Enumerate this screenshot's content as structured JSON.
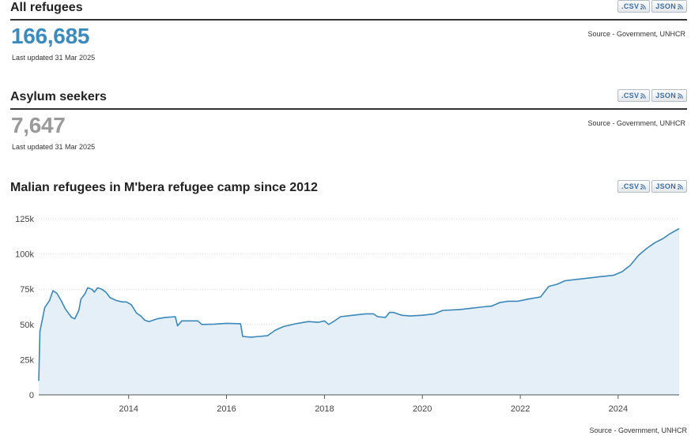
{
  "export": {
    "csv_label": ".CSV",
    "json_label": "JSON",
    "feed_icon": "rss-icon"
  },
  "refugees": {
    "title": "All refugees",
    "value": "166,685",
    "updated": "Last updated 31 Mar 2025",
    "source": "Source - Government, UNHCR",
    "value_color": "#3b8bbd"
  },
  "asylum": {
    "title": "Asylum seekers",
    "value": "7,647",
    "updated": "Last updated 31 Mar 2025",
    "source": "Source - Government, UNHCR",
    "value_color": "#9a9a9a"
  },
  "chart_section": {
    "title": "Malian refugees in M'bera refugee camp since 2012",
    "source": "Source - Government, UNHCR"
  },
  "chart_data": {
    "type": "area",
    "title": "Malian refugees in M'bera refugee camp since 2012",
    "xlabel": "",
    "ylabel": "",
    "xlim": [
      "2012-03-01",
      "2025-03-31"
    ],
    "ylim": [
      0,
      125000
    ],
    "y_ticks": [
      0,
      25000,
      50000,
      75000,
      100000,
      125000
    ],
    "y_tick_labels": [
      "0",
      "25k",
      "50k",
      "75k",
      "100k",
      "125k"
    ],
    "x_ticks": [
      "2014-01-01",
      "2016-01-01",
      "2018-01-01",
      "2020-01-01",
      "2022-01-01",
      "2024-01-01"
    ],
    "x_tick_labels": [
      "2014",
      "2016",
      "2018",
      "2020",
      "2022",
      "2024"
    ],
    "grid": true,
    "line_color": "#3a87b8",
    "fill_color": "#e5eff7",
    "points": [
      [
        "2012-03-01",
        10000
      ],
      [
        "2012-03-10",
        45000
      ],
      [
        "2012-04-15",
        62000
      ],
      [
        "2012-05-20",
        67000
      ],
      [
        "2012-06-15",
        74000
      ],
      [
        "2012-07-15",
        72000
      ],
      [
        "2012-08-15",
        67000
      ],
      [
        "2012-09-15",
        61000
      ],
      [
        "2012-11-01",
        55000
      ],
      [
        "2012-11-25",
        54000
      ],
      [
        "2012-12-25",
        60000
      ],
      [
        "2013-01-10",
        68000
      ],
      [
        "2013-02-10",
        72000
      ],
      [
        "2013-03-01",
        76000
      ],
      [
        "2013-04-01",
        75000
      ],
      [
        "2013-04-20",
        73000
      ],
      [
        "2013-05-15",
        76000
      ],
      [
        "2013-06-15",
        75000
      ],
      [
        "2013-07-15",
        73000
      ],
      [
        "2013-08-15",
        69000
      ],
      [
        "2013-10-01",
        67000
      ],
      [
        "2013-11-15",
        66000
      ],
      [
        "2013-12-15",
        66000
      ],
      [
        "2014-01-20",
        64000
      ],
      [
        "2014-03-01",
        58000
      ],
      [
        "2014-04-01",
        56000
      ],
      [
        "2014-05-01",
        53000
      ],
      [
        "2014-06-01",
        52000
      ],
      [
        "2014-08-01",
        54000
      ],
      [
        "2014-10-01",
        55000
      ],
      [
        "2014-12-15",
        55500
      ],
      [
        "2015-01-01",
        49000
      ],
      [
        "2015-02-01",
        52500
      ],
      [
        "2015-06-01",
        52500
      ],
      [
        "2015-07-01",
        50000
      ],
      [
        "2015-10-01",
        50200
      ],
      [
        "2016-01-01",
        50800
      ],
      [
        "2016-04-15",
        50500
      ],
      [
        "2016-05-01",
        41500
      ],
      [
        "2016-07-01",
        41000
      ],
      [
        "2016-09-01",
        41500
      ],
      [
        "2016-11-01",
        42000
      ],
      [
        "2017-01-01",
        46000
      ],
      [
        "2017-03-01",
        48500
      ],
      [
        "2017-06-01",
        50500
      ],
      [
        "2017-09-01",
        52000
      ],
      [
        "2017-11-15",
        51500
      ],
      [
        "2018-01-01",
        52500
      ],
      [
        "2018-02-01",
        50000
      ],
      [
        "2018-03-01",
        51500
      ],
      [
        "2018-05-01",
        55500
      ],
      [
        "2018-08-01",
        56500
      ],
      [
        "2018-11-01",
        57500
      ],
      [
        "2019-01-01",
        57500
      ],
      [
        "2019-02-01",
        55500
      ],
      [
        "2019-04-01",
        55000
      ],
      [
        "2019-05-01",
        58500
      ],
      [
        "2019-06-01",
        58500
      ],
      [
        "2019-08-01",
        56500
      ],
      [
        "2019-10-01",
        56000
      ],
      [
        "2020-01-01",
        56500
      ],
      [
        "2020-04-01",
        57500
      ],
      [
        "2020-06-01",
        60000
      ],
      [
        "2020-10-01",
        60500
      ],
      [
        "2021-01-01",
        61500
      ],
      [
        "2021-04-01",
        62500
      ],
      [
        "2021-06-01",
        63000
      ],
      [
        "2021-08-01",
        65500
      ],
      [
        "2021-10-01",
        66500
      ],
      [
        "2021-12-15",
        66500
      ],
      [
        "2022-03-01",
        68000
      ],
      [
        "2022-06-01",
        69500
      ],
      [
        "2022-08-01",
        77000
      ],
      [
        "2022-10-01",
        78500
      ],
      [
        "2022-12-01",
        81000
      ],
      [
        "2023-03-01",
        82000
      ],
      [
        "2023-06-01",
        83000
      ],
      [
        "2023-09-01",
        84000
      ],
      [
        "2023-12-01",
        85000
      ],
      [
        "2024-02-01",
        87500
      ],
      [
        "2024-04-01",
        92000
      ],
      [
        "2024-06-01",
        99000
      ],
      [
        "2024-08-01",
        104000
      ],
      [
        "2024-10-01",
        108000
      ],
      [
        "2024-12-01",
        111000
      ],
      [
        "2025-01-15",
        114000
      ],
      [
        "2025-03-31",
        118000
      ]
    ]
  }
}
